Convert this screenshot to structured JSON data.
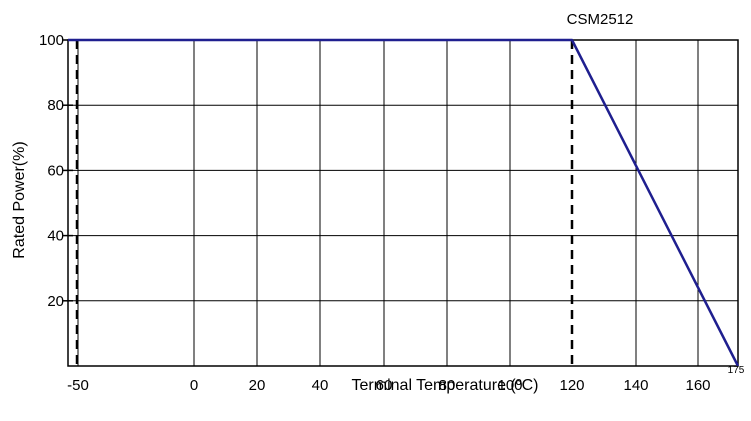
{
  "chart_data": {
    "type": "line",
    "title": "CSM2512",
    "xlabel": "Terminal Temperature (ºC)",
    "ylabel": "Rated Power(%)",
    "x_ticks": [
      {
        "value": -50,
        "label": "-50",
        "small": false
      },
      {
        "value": 0,
        "label": "0",
        "small": false
      },
      {
        "value": 20,
        "label": "20",
        "small": false
      },
      {
        "value": 40,
        "label": "40",
        "small": false
      },
      {
        "value": 60,
        "label": "60",
        "small": false
      },
      {
        "value": 80,
        "label": "80",
        "small": false
      },
      {
        "value": 100,
        "label": "100",
        "small": false
      },
      {
        "value": 120,
        "label": "120",
        "small": false
      },
      {
        "value": 140,
        "label": "140",
        "small": false
      },
      {
        "value": 160,
        "label": "160",
        "small": false
      },
      {
        "value": 175,
        "label": "175",
        "small": true
      }
    ],
    "y_ticks": [
      {
        "value": 20,
        "label": "20"
      },
      {
        "value": 40,
        "label": "40"
      },
      {
        "value": 60,
        "label": "60"
      },
      {
        "value": 80,
        "label": "80"
      },
      {
        "value": 100,
        "label": "100"
      }
    ],
    "series": [
      {
        "points": [
          {
            "x": -55,
            "y": 100
          },
          {
            "x": 120,
            "y": 100
          },
          {
            "x": 175,
            "y": 0
          }
        ],
        "color": "#1f1f8f"
      }
    ],
    "reference_lines": [
      {
        "x": -55,
        "style": "dashed"
      },
      {
        "x": 120,
        "style": "dashed"
      }
    ],
    "xlim": [
      -55,
      175
    ],
    "ylim": [
      0,
      100
    ],
    "grid": true
  }
}
